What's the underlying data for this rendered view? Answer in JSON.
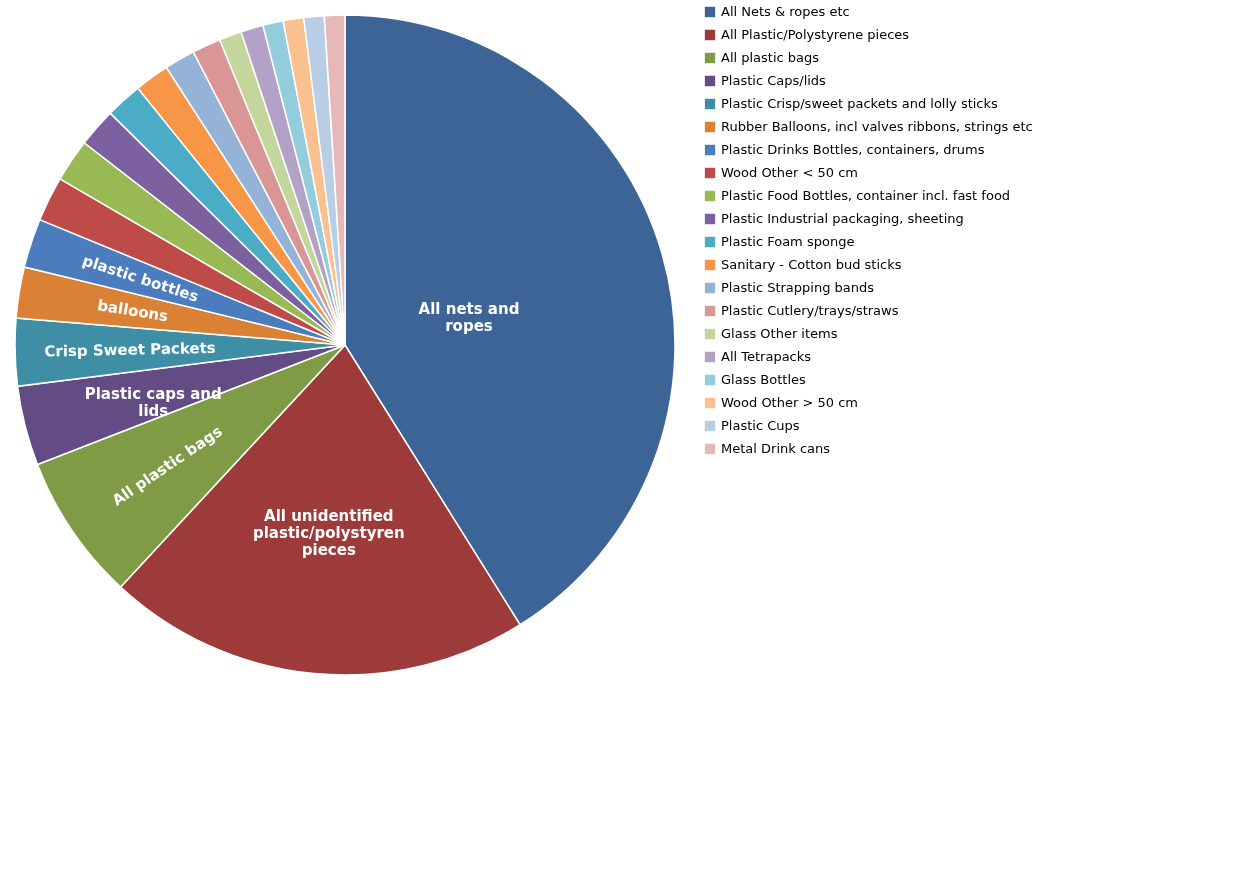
{
  "chart_data": {
    "type": "pie",
    "categories": [
      "All Nets & ropes etc",
      "All Plastic/Polystyrene pieces",
      "All plastic bags",
      "Plastic Caps/lids",
      "Plastic Crisp/sweet packets and lolly sticks",
      "Rubber Balloons, incl valves ribbons, strings etc",
      "Plastic Drinks Bottles, containers, drums",
      "Wood Other < 50 cm",
      "Plastic Food Bottles, container incl. fast food",
      "Plastic Industrial packaging, sheeting",
      "Plastic Foam sponge",
      "Sanitary - Cotton bud sticks",
      "Plastic Strapping bands",
      "Plastic Cutlery/trays/straws",
      "Glass Other items",
      "All Tetrapacks",
      "Glass Bottles",
      "Wood Other > 50 cm",
      "Plastic Cups",
      "Metal Drink cans"
    ],
    "values": [
      41.1,
      20.8,
      7.2,
      3.9,
      3.3,
      2.5,
      2.4,
      2.2,
      2.1,
      1.9,
      1.8,
      1.7,
      1.5,
      1.4,
      1.1,
      1.1,
      1.0,
      1.0,
      1.0,
      1.0
    ],
    "colors": [
      "#3c6496",
      "#9c3b39",
      "#7f9b45",
      "#634c84",
      "#3e8fa6",
      "#da8136",
      "#4a7cbe",
      "#be4b48",
      "#98b954",
      "#7d60a0",
      "#4bacc6",
      "#f79646",
      "#95b3d7",
      "#d99694",
      "#c3d69b",
      "#b3a2c7",
      "#93cddd",
      "#fac090",
      "#b9cde5",
      "#e6b9b8"
    ],
    "value_labels": [
      "All nets and ropes",
      "All unidentified plastic/polystyren pieces",
      "All plastic bags",
      "Plastic caps and lids",
      "Crisp Sweet Packets",
      "balloons",
      "plastic bottles",
      null,
      null,
      null,
      null,
      null,
      null,
      null,
      null,
      null,
      null,
      null,
      null,
      null
    ],
    "legend": "right"
  }
}
